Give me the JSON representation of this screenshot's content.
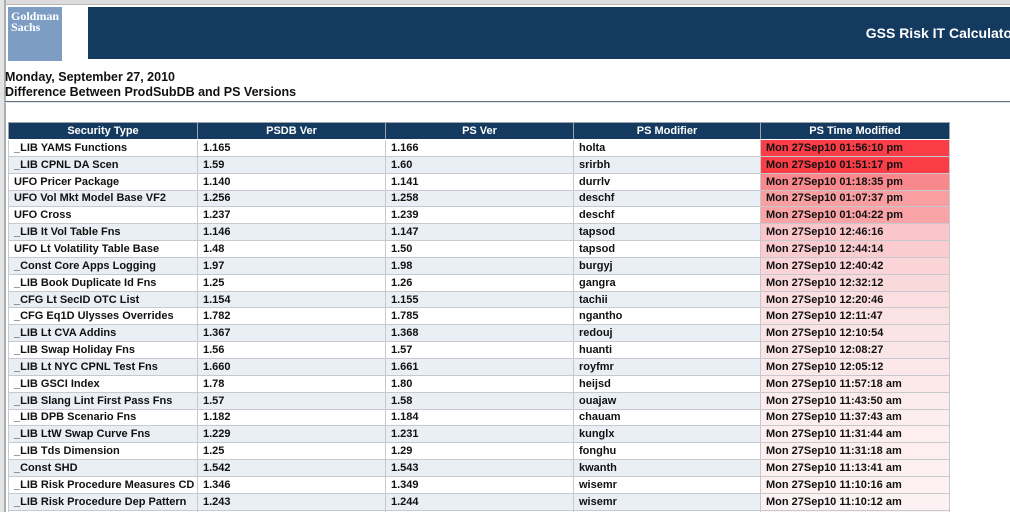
{
  "brand": {
    "logo_line1": "Goldman",
    "logo_line2": "Sachs",
    "banner_title": "GSS Risk IT Calculato"
  },
  "page": {
    "date_line": "Monday, September 27, 2010",
    "subtitle": "Difference Between ProdSubDB and PS Versions"
  },
  "colors": {
    "brand_navy": "#143a60",
    "logo_blue": "#7d9dc5",
    "row_alt": "#eaeff5",
    "recent_red": "#fa3d46"
  },
  "table": {
    "columns": [
      "Security Type",
      "PSDB Ver",
      "PS Ver",
      "PS Modifier",
      "PS Time Modified"
    ],
    "rows": [
      {
        "security_type": "_LIB YAMS Functions",
        "psdb_ver": "1.165",
        "ps_ver": "1.166",
        "ps_modifier": "holta",
        "ps_time_modified": "Mon 27Sep10 01:56:10 pm",
        "heat": "#fa3d46"
      },
      {
        "security_type": "_LIB CPNL DA Scen",
        "psdb_ver": "1.59",
        "ps_ver": "1.60",
        "ps_modifier": "srirbh",
        "ps_time_modified": "Mon 27Sep10 01:51:17 pm",
        "heat": "#fa3d46"
      },
      {
        "security_type": "UFO Pricer Package",
        "psdb_ver": "1.140",
        "ps_ver": "1.141",
        "ps_modifier": "durrlv",
        "ps_time_modified": "Mon 27Sep10 01:18:35 pm",
        "heat": "#f9888c"
      },
      {
        "security_type": "UFO Vol Mkt Model Base VF2",
        "psdb_ver": "1.256",
        "ps_ver": "1.258",
        "ps_modifier": "deschf",
        "ps_time_modified": "Mon 27Sep10 01:07:37 pm",
        "heat": "#f99fa2"
      },
      {
        "security_type": "UFO Cross",
        "psdb_ver": "1.237",
        "ps_ver": "1.239",
        "ps_modifier": "deschf",
        "ps_time_modified": "Mon 27Sep10 01:04:22 pm",
        "heat": "#f9a3a6"
      },
      {
        "security_type": "_LIB It Vol Table Fns",
        "psdb_ver": "1.146",
        "ps_ver": "1.147",
        "ps_modifier": "tapsod",
        "ps_time_modified": "Mon 27Sep10 12:46:16",
        "heat": "#fac6c9"
      },
      {
        "security_type": "UFO Lt Volatility Table Base",
        "psdb_ver": "1.48",
        "ps_ver": "1.50",
        "ps_modifier": "tapsod",
        "ps_time_modified": "Mon 27Sep10 12:44:14",
        "heat": "#facccf"
      },
      {
        "security_type": "_Const Core Apps Logging",
        "psdb_ver": "1.97",
        "ps_ver": "1.98",
        "ps_modifier": "burgyj",
        "ps_time_modified": "Mon 27Sep10 12:40:42",
        "heat": "#fad4d6"
      },
      {
        "security_type": "_LIB Book Duplicate Id Fns",
        "psdb_ver": "1.25",
        "ps_ver": "1.26",
        "ps_modifier": "gangra",
        "ps_time_modified": "Mon 27Sep10 12:32:12",
        "heat": "#fad9db"
      },
      {
        "security_type": "_CFG Lt SecID OTC List",
        "psdb_ver": "1.154",
        "ps_ver": "1.155",
        "ps_modifier": "tachii",
        "ps_time_modified": "Mon 27Sep10 12:20:46",
        "heat": "#fbdee0"
      },
      {
        "security_type": "_CFG Eq1D Ulysses Overrides",
        "psdb_ver": "1.782",
        "ps_ver": "1.785",
        "ps_modifier": "ngantho",
        "ps_time_modified": "Mon 27Sep10 12:11:47",
        "heat": "#fbe2e3"
      },
      {
        "security_type": "_LIB Lt CVA Addins",
        "psdb_ver": "1.367",
        "ps_ver": "1.368",
        "ps_modifier": "redouj",
        "ps_time_modified": "Mon 27Sep10 12:10:54",
        "heat": "#fbe4e5"
      },
      {
        "security_type": "_LIB Swap Holiday Fns",
        "psdb_ver": "1.56",
        "ps_ver": "1.57",
        "ps_modifier": "huanti",
        "ps_time_modified": "Mon 27Sep10 12:08:27",
        "heat": "#fbe6e7"
      },
      {
        "security_type": "_LIB Lt NYC CPNL Test Fns",
        "psdb_ver": "1.660",
        "ps_ver": "1.661",
        "ps_modifier": "royfmr",
        "ps_time_modified": "Mon 27Sep10 12:05:12",
        "heat": "#fce8e9"
      },
      {
        "security_type": "_LIB GSCI Index",
        "psdb_ver": "1.78",
        "ps_ver": "1.80",
        "ps_modifier": "heijsd",
        "ps_time_modified": "Mon 27Sep10 11:57:18 am",
        "heat": "#fceaeb"
      },
      {
        "security_type": "_LIB Slang Lint First Pass Fns",
        "psdb_ver": "1.57",
        "ps_ver": "1.58",
        "ps_modifier": "ouajaw",
        "ps_time_modified": "Mon 27Sep10 11:43:50 am",
        "heat": "#fceced"
      },
      {
        "security_type": "_LIB DPB Scenario Fns",
        "psdb_ver": "1.182",
        "ps_ver": "1.184",
        "ps_modifier": "chauam",
        "ps_time_modified": "Mon 27Sep10 11:37:43 am",
        "heat": "#fcedee"
      },
      {
        "security_type": "_LIB LtW Swap Curve Fns",
        "psdb_ver": "1.229",
        "ps_ver": "1.231",
        "ps_modifier": "kunglx",
        "ps_time_modified": "Mon 27Sep10 11:31:44 am",
        "heat": "#fdeeef"
      },
      {
        "security_type": "_LIB Tds Dimension",
        "psdb_ver": "1.25",
        "ps_ver": "1.29",
        "ps_modifier": "fonghu",
        "ps_time_modified": "Mon 27Sep10 11:31:18 am",
        "heat": "#fdeff0"
      },
      {
        "security_type": "_Const SHD",
        "psdb_ver": "1.542",
        "ps_ver": "1.543",
        "ps_modifier": "kwanth",
        "ps_time_modified": "Mon 27Sep10 11:13:41 am",
        "heat": "#fdf0f1"
      },
      {
        "security_type": "_LIB Risk Procedure Measures CD",
        "psdb_ver": "1.346",
        "ps_ver": "1.349",
        "ps_modifier": "wisemr",
        "ps_time_modified": "Mon 27Sep10 11:10:16 am",
        "heat": "#fdf1f2"
      },
      {
        "security_type": "_LIB Risk Procedure Dep Pattern",
        "psdb_ver": "1.243",
        "ps_ver": "1.244",
        "ps_modifier": "wisemr",
        "ps_time_modified": "Mon 27Sep10 11:10:12 am",
        "heat": "#fdf2f3"
      }
    ],
    "partial_row": {
      "security_type": "",
      "psdb_ver": "",
      "ps_ver": "",
      "ps_modifier": "",
      "ps_time_modified": "",
      "heat": "#fdf3f4"
    }
  }
}
